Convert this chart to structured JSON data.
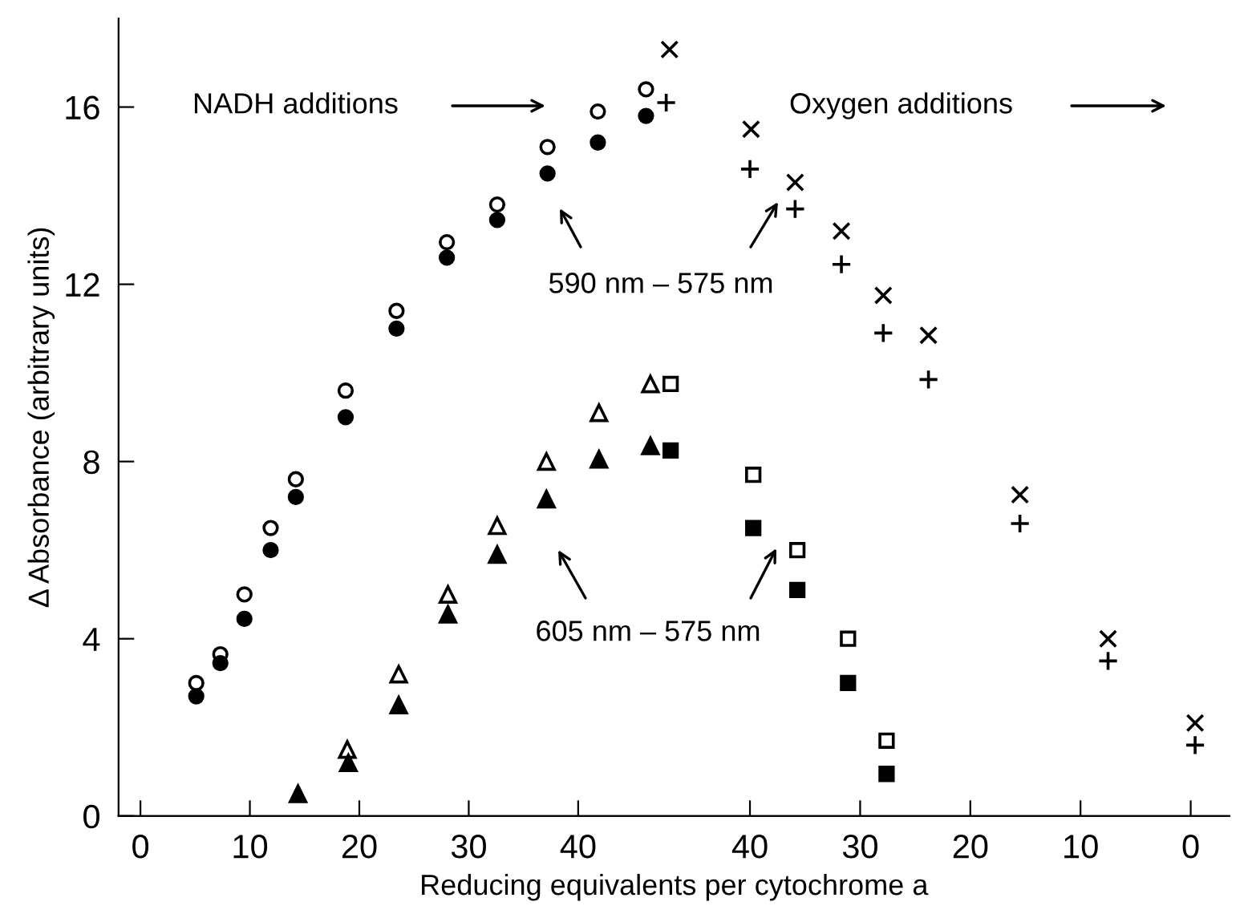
{
  "chart_data": {
    "type": "scatter",
    "xlabel": "Reducing equivalents per cytochrome a",
    "ylabel": "Δ Absorbance (arbitrary units)",
    "xlim": [
      -2,
      99.5
    ],
    "ylim": [
      0,
      18
    ],
    "xticks": [
      0,
      10,
      20,
      30,
      40
    ],
    "x2lim": [
      97.3,
      -3.5
    ],
    "x2ticks": [
      40,
      30,
      20,
      10,
      0
    ],
    "yticks": [
      0,
      4,
      8,
      12,
      16
    ],
    "grid": false,
    "legend": false,
    "annotations": [
      "NADH additions",
      "Oxygen additions",
      "590 nm – 575 nm",
      "605 nm – 575 nm"
    ],
    "series": [
      {
        "color": "#000000",
        "marker": "circle",
        "x": [
          5.1,
          7.3,
          9.5,
          11.9,
          14.2,
          18.75,
          23.4,
          28.0,
          32.6,
          37.2,
          41.8,
          46.2
        ],
        "values": [
          3.0,
          3.65,
          5.0,
          6.5,
          7.6,
          9.6,
          11.4,
          12.95,
          13.8,
          15.1,
          15.9,
          16.4
        ]
      },
      {
        "color": "#000000",
        "marker": "circle",
        "x": [
          5.1,
          7.3,
          9.5,
          11.9,
          14.2,
          18.75,
          23.4,
          28.0,
          32.6,
          37.2,
          41.8,
          46.2
        ],
        "values": [
          2.7,
          3.45,
          4.45,
          6.0,
          7.2,
          9.0,
          11.0,
          12.6,
          13.45,
          14.5,
          15.2,
          15.8
        ]
      },
      {
        "color": "#000000",
        "marker": "triangle",
        "x": [
          18.9,
          23.6,
          28.1,
          32.6,
          37.1,
          41.9,
          46.6
        ],
        "values": [
          1.5,
          3.2,
          5.0,
          6.55,
          8.0,
          9.1,
          9.75
        ]
      },
      {
        "color": "#000000",
        "marker": "triangle",
        "x": [
          14.4,
          19.0,
          23.6,
          28.1,
          32.6,
          37.1,
          41.9,
          46.6
        ],
        "values": [
          0.5,
          1.2,
          2.5,
          4.55,
          5.9,
          7.15,
          8.05,
          8.35
        ]
      },
      {
        "color": "#000000",
        "marker": "square",
        "axis": "x2",
        "x": [
          47.2,
          39.7,
          35.7,
          31.1,
          27.6
        ],
        "values": [
          9.75,
          7.7,
          6.0,
          4.0,
          1.7
        ]
      },
      {
        "color": "#000000",
        "marker": "square",
        "axis": "x2",
        "x": [
          47.2,
          39.7,
          35.7,
          31.1,
          27.6
        ],
        "values": [
          8.25,
          6.5,
          5.1,
          3.0,
          0.95
        ]
      },
      {
        "color": "#000000",
        "marker": "cross",
        "axis": "x2",
        "x": [
          47.3,
          39.9,
          35.9,
          31.7,
          27.9,
          23.8,
          15.5,
          7.5,
          -0.4
        ],
        "values": [
          17.3,
          15.5,
          14.3,
          13.2,
          11.75,
          10.85,
          7.25,
          4.0,
          2.1
        ]
      },
      {
        "color": "#000000",
        "marker": "plus",
        "axis": "x2",
        "x": [
          47.6,
          40.0,
          35.9,
          31.7,
          27.9,
          23.8,
          15.5,
          7.5,
          -0.4
        ],
        "values": [
          16.1,
          14.6,
          13.7,
          12.45,
          10.9,
          9.85,
          6.6,
          3.5,
          1.6
        ]
      }
    ]
  }
}
